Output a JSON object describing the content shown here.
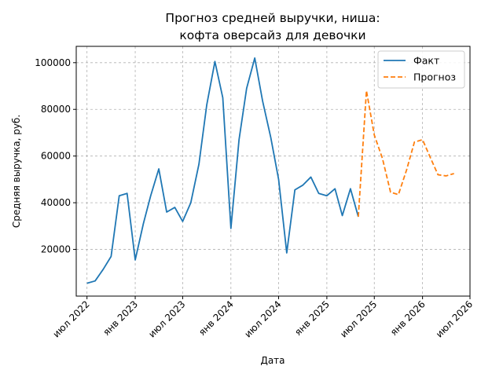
{
  "chart_data": {
    "type": "line",
    "title": [
      "Прогноз средней выручки, ниша:",
      "кофта оверсайз для девочки"
    ],
    "xlabel": "Дата",
    "ylabel": "Средняя выручка, руб.",
    "x_ticks": [
      "2022-07-01",
      "2023-01-01",
      "2023-07-01",
      "2024-01-01",
      "2024-07-01",
      "2025-01-01",
      "2025-07-01",
      "2026-01-01",
      "2026-07-01"
    ],
    "x_tick_labels": [
      "июл 2022",
      "янв 2023",
      "июл 2023",
      "янв 2024",
      "июл 2024",
      "янв 2025",
      "июл 2025",
      "янв 2026",
      "июл 2026"
    ],
    "xlim": [
      "2022-05-21",
      "2026-07-01"
    ],
    "y_ticks": [
      20000,
      40000,
      60000,
      80000,
      100000
    ],
    "ylim": [
      0,
      107000
    ],
    "grid": true,
    "legend_position": "top-right",
    "series": [
      {
        "name": "Факт",
        "color": "#1f77b4",
        "style": "solid",
        "points": [
          [
            "2022-07-01",
            5500
          ],
          [
            "2022-08-01",
            6500
          ],
          [
            "2022-09-01",
            11500
          ],
          [
            "2022-10-01",
            17000
          ],
          [
            "2022-11-01",
            43000
          ],
          [
            "2022-12-01",
            44000
          ],
          [
            "2023-01-01",
            15500
          ],
          [
            "2023-02-01",
            31000
          ],
          [
            "2023-03-01",
            43000
          ],
          [
            "2023-04-01",
            54500
          ],
          [
            "2023-05-01",
            36000
          ],
          [
            "2023-06-01",
            38000
          ],
          [
            "2023-07-01",
            32000
          ],
          [
            "2023-08-01",
            40000
          ],
          [
            "2023-09-01",
            56500
          ],
          [
            "2023-10-01",
            82000
          ],
          [
            "2023-11-01",
            100500
          ],
          [
            "2023-12-01",
            85000
          ],
          [
            "2024-01-01",
            29000
          ],
          [
            "2024-02-01",
            67000
          ],
          [
            "2024-03-01",
            89000
          ],
          [
            "2024-04-01",
            102000
          ],
          [
            "2024-05-01",
            83500
          ],
          [
            "2024-06-01",
            68000
          ],
          [
            "2024-07-01",
            50000
          ],
          [
            "2024-08-01",
            18500
          ],
          [
            "2024-09-01",
            45500
          ],
          [
            "2024-10-01",
            47500
          ],
          [
            "2024-11-01",
            51000
          ],
          [
            "2024-12-01",
            44000
          ],
          [
            "2025-01-01",
            43000
          ],
          [
            "2025-02-01",
            46000
          ],
          [
            "2025-03-01",
            34500
          ],
          [
            "2025-04-01",
            46000
          ],
          [
            "2025-05-01",
            34000
          ]
        ]
      },
      {
        "name": "Прогноз",
        "color": "#ff7f0e",
        "style": "dashed",
        "points": [
          [
            "2025-05-01",
            34000
          ],
          [
            "2025-06-01",
            88000
          ],
          [
            "2025-07-01",
            69000
          ],
          [
            "2025-08-01",
            59000
          ],
          [
            "2025-09-01",
            44500
          ],
          [
            "2025-10-01",
            43500
          ],
          [
            "2025-11-01",
            54000
          ],
          [
            "2025-12-01",
            66000
          ],
          [
            "2026-01-01",
            67000
          ],
          [
            "2026-02-01",
            59000
          ],
          [
            "2026-03-01",
            52000
          ],
          [
            "2026-04-01",
            51500
          ],
          [
            "2026-05-01",
            52500
          ]
        ]
      }
    ]
  }
}
